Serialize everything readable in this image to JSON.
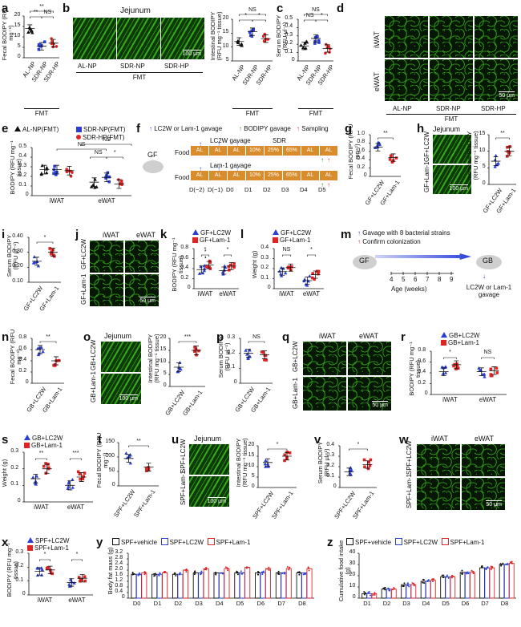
{
  "colors": {
    "blue": "#2a3fd8",
    "red": "#e02424",
    "black": "#111111",
    "green_img": "#2f9a18",
    "food": "#d98c2b"
  },
  "panels": {
    "a": {
      "label": "a",
      "ylabel": "Fecal BODIPY (RFU mg⁻¹)",
      "yticks": [
        "0",
        "5",
        "10",
        "15",
        "20"
      ],
      "groups": [
        "AL-NP",
        "SDR-NP",
        "SDR-HP"
      ],
      "group_caption": "FMT",
      "sig": [
        "**",
        "**",
        "NS"
      ]
    },
    "b": {
      "label": "b",
      "title": "Jejunum",
      "images": [
        "AL-NP",
        "SDR-NP",
        "SDR-HP"
      ],
      "scale": "100 μm",
      "group_caption": "FMT",
      "ylabel": "Intestinal BODIPY (RFU mg⁻¹ tissue)",
      "yticks": [
        "5",
        "10",
        "15",
        "20"
      ],
      "groups": [
        "AL-NP",
        "SDR-NP",
        "SDR-HP"
      ],
      "sig": [
        "NS",
        "*",
        "*"
      ]
    },
    "c": {
      "label": "c",
      "ylabel": "Serum BODIPY (RFU μl⁻¹)",
      "yticks": [
        "0",
        "0.1",
        "0.2",
        "0.3",
        "0.4",
        "0.5"
      ],
      "groups": [
        "AL-NP",
        "SDR-NP",
        "SDR-HP"
      ],
      "group_caption": "FMT",
      "sig": [
        "NS",
        "NS",
        "*"
      ]
    },
    "d": {
      "label": "d",
      "rows": [
        "iWAT",
        "eWAT"
      ],
      "cols": [
        "AL-NP",
        "SDR-NP",
        "SDR-HP"
      ],
      "group_caption": "FMT",
      "scale": "50 μm"
    },
    "e": {
      "label": "e",
      "legend": [
        "AL-NP(FMT)",
        "SDR-NP(FMT)",
        "SDR-HP(FMT)"
      ],
      "ylabel": "BODIPY (RFU mg⁻¹ tissue)",
      "yticks": [
        "0",
        "0.1",
        "0.2",
        "0.3",
        "0.4",
        "0.5"
      ],
      "groups": [
        "iWAT",
        "eWAT"
      ],
      "sig": [
        "NS",
        "NS",
        "NS",
        "*",
        "**"
      ]
    },
    "f": {
      "label": "f",
      "legend": [
        "LC2W or Lam-1 gavage",
        "BODIPY gavage",
        "Sampling"
      ],
      "mouse": "GF",
      "food": "Food",
      "lc2w_title": "LC2W gavage",
      "lam_title": "Lam-1 gavage",
      "sdr": "SDR",
      "boxes": [
        "AL",
        "AL",
        "AL",
        "10%",
        "25%",
        "65%",
        "AL",
        "AL"
      ],
      "days": [
        "D(−2)",
        "D(−1)",
        "D0",
        "D1",
        "D2",
        "D3",
        "D4",
        "D5"
      ]
    },
    "g": {
      "label": "g",
      "ylabel": "Fecal BODIPY (RFU mg⁻¹)",
      "yticks": [
        "0",
        "0.2",
        "0.4",
        "0.6",
        "0.8",
        "1.0"
      ],
      "groups": [
        "GF+LC2W",
        "GF+Lam-1"
      ],
      "sig": [
        "**"
      ]
    },
    "h": {
      "label": "h",
      "title": "Jejunum",
      "rows": [
        "GF+LC2W",
        "GF+Lam-1"
      ],
      "scale": "100 μm",
      "ylabel": "Intestinal BODIPY (RFU mg⁻¹ tissue)",
      "yticks": [
        "0",
        "5",
        "10",
        "15"
      ],
      "groups": [
        "GF+LC2W",
        "GF+Lam-1"
      ],
      "sig": [
        "**"
      ]
    },
    "i": {
      "label": "i",
      "ylabel": "Serum BODIPY (RFU μl⁻¹)",
      "yticks": [
        "0.10",
        "0.20",
        "0.30",
        "0.40"
      ],
      "groups": [
        "GF+LC2W",
        "GF+Lam-1"
      ],
      "sig": [
        "*"
      ]
    },
    "j": {
      "label": "j",
      "cols": [
        "iWAT",
        "eWAT"
      ],
      "rows": [
        "GF+LC2W",
        "GF+Lam-1"
      ],
      "scale": "50 μm"
    },
    "k": {
      "label": "k",
      "legend": [
        "GF+LC2W",
        "GF+Lam-1"
      ],
      "ylabel": "BODIPY (RFU mg⁻¹ tissue)",
      "yticks": [
        "0",
        "0.2",
        "0.4",
        "0.6",
        "0.8"
      ],
      "groups": [
        "iWAT",
        "eWAT"
      ],
      "sig": [
        "*",
        "*"
      ]
    },
    "l": {
      "label": "l",
      "legend": [
        "GF+LC2W",
        "GF+Lam-1"
      ],
      "ylabel": "Weight (g)",
      "yticks": [
        "0",
        "0.1",
        "0.2",
        "0.3",
        "0.4"
      ],
      "groups": [
        "iWAT",
        "eWAT"
      ],
      "sig": [
        "NS",
        "*"
      ]
    },
    "m": {
      "label": "m",
      "legend": [
        "Gavage with 8 bacterial strains",
        "Confirm colonization"
      ],
      "mouse_a": "GF",
      "mouse_b": "GB",
      "ages": [
        "4",
        "5",
        "6",
        "7",
        "8",
        "9"
      ],
      "age_caption": "Age (weeks)",
      "arrow_caption": "LC2W or Lam-1 gavage"
    },
    "n": {
      "label": "n",
      "ylabel": "Fecal BODIPY (RFU mg⁻¹)",
      "yticks": [
        "0",
        "0.2",
        "0.4",
        "0.6",
        "0.8"
      ],
      "groups": [
        "GB+LC2W",
        "GB+Lam-1"
      ],
      "sig": [
        "**"
      ]
    },
    "o": {
      "label": "o",
      "title": "Jejunum",
      "rows": [
        "GB+LC2W",
        "GB+Lam-1"
      ],
      "scale": "100 μm",
      "ylabel": "Intestinal BODIPY (RFU mg⁻¹ tissue)",
      "yticks": [
        "0",
        "5",
        "10",
        "15",
        "20"
      ],
      "groups": [
        "GB+LC2W",
        "GB+Lam-1"
      ],
      "sig": [
        "***"
      ]
    },
    "p": {
      "label": "p",
      "ylabel": "Serum BODIPY (RFU μl⁻¹)",
      "yticks": [
        "0",
        "0.1",
        "0.2",
        "0.3"
      ],
      "groups": [
        "GB+LC2W",
        "GB+Lam-1"
      ],
      "sig": [
        "NS"
      ]
    },
    "q": {
      "label": "q",
      "cols": [
        "iWAT",
        "eWAT"
      ],
      "rows": [
        "GB+LC2W",
        "GB+Lam-1"
      ],
      "scale": "50 μm"
    },
    "r": {
      "label": "r",
      "legend": [
        "GB+LC2W",
        "GB+Lam-1"
      ],
      "ylabel": "BODIPY (RFU mg⁻¹ tissue)",
      "yticks": [
        "0",
        "0.2",
        "0.4",
        "0.6",
        "0.8"
      ],
      "groups": [
        "iWAT",
        "eWAT"
      ],
      "sig": [
        "*",
        "NS"
      ]
    },
    "s": {
      "label": "s",
      "legend": [
        "GB+LC2W",
        "GB+Lam-1"
      ],
      "ylabel": "Weight (g)",
      "yticks": [
        "0",
        "0.1",
        "0.2",
        "0.3"
      ],
      "groups": [
        "iWAT",
        "eWAT"
      ],
      "sig": [
        "**",
        "***"
      ]
    },
    "t": {
      "label": "t",
      "ylabel": "Fecal BODIPY (RFU mg⁻¹)",
      "yticks": [
        "0",
        "50",
        "100",
        "150"
      ],
      "groups": [
        "SPF+LC2W",
        "SPF+Lam-1"
      ],
      "sig": [
        "**"
      ]
    },
    "u": {
      "label": "u",
      "title": "Jejunum",
      "rows": [
        "SPF+LC2W",
        "SPF+Lam-1"
      ],
      "scale": "100 μm",
      "ylabel": "Intestinal BODIPY (RFU mg⁻¹ tissue)",
      "yticks": [
        "0",
        "5",
        "10",
        "15",
        "20"
      ],
      "groups": [
        "SPF+LC2W",
        "SPF+Lam-1"
      ],
      "sig": [
        "*"
      ]
    },
    "v": {
      "label": "v",
      "ylabel": "Serum BODIPY (RFU μl⁻¹)",
      "yticks": [
        "0",
        "0.1",
        "0.2",
        "0.3",
        "0.4"
      ],
      "groups": [
        "SPF+LC2W",
        "SPF+Lam-1"
      ],
      "sig": [
        "*"
      ]
    },
    "w": {
      "label": "w",
      "cols": [
        "iWAT",
        "eWAT"
      ],
      "rows": [
        "SPF+LC2W",
        "SPF+Lam-1"
      ],
      "scale": "50 μm"
    },
    "x": {
      "label": "x",
      "legend": [
        "SPF+LC2W",
        "SPF+Lam-1"
      ],
      "ylabel": "BODIPY (RFU mg⁻¹ tissue)",
      "yticks": [
        "0",
        "0.1",
        "0.2",
        "0.3"
      ],
      "groups": [
        "iWAT",
        "eWAT"
      ],
      "sig": [
        "*",
        "*"
      ]
    },
    "y": {
      "label": "y",
      "legend": [
        "SPF+vehicle",
        "SPF+LC2W",
        "SPF+Lam-1"
      ],
      "ylabel": "Body fat mass (g)",
      "yticks": [
        "0",
        "0.4",
        "0.8",
        "1.2",
        "1.6",
        "2.0",
        "2.4",
        "2.8",
        "3.2"
      ],
      "days": [
        "D0",
        "D1",
        "D2",
        "D3",
        "D4",
        "D5",
        "D6",
        "D7",
        "D8"
      ]
    },
    "z": {
      "label": "z",
      "legend": [
        "SPF+vehicle",
        "SPF+LC2W",
        "SPF+Lam-1"
      ],
      "ylabel": "Cumulative food intake (g)",
      "yticks": [
        "0",
        "10",
        "20",
        "30",
        "40"
      ],
      "days": [
        "D1",
        "D2",
        "D3",
        "D4",
        "D5",
        "D6",
        "D7",
        "D8"
      ]
    }
  },
  "chart_data": [
    {
      "type": "scatter",
      "panel": "a",
      "categories": [
        "AL-NP",
        "SDR-NP",
        "SDR-HP"
      ],
      "means": [
        14,
        5.5,
        7
      ],
      "ylim": [
        0,
        20
      ]
    },
    {
      "type": "scatter",
      "panel": "b",
      "categories": [
        "AL-NP",
        "SDR-NP",
        "SDR-HP"
      ],
      "means": [
        12,
        15.5,
        13
      ],
      "ylim": [
        5,
        20
      ]
    },
    {
      "type": "scatter",
      "panel": "c",
      "categories": [
        "AL-NP",
        "SDR-NP",
        "SDR-HP"
      ],
      "means": [
        0.18,
        0.27,
        0.15
      ],
      "ylim": [
        0,
        0.5
      ]
    },
    {
      "type": "scatter",
      "panel": "e",
      "categories": [
        "iWAT",
        "eWAT"
      ],
      "series": [
        {
          "name": "AL-NP(FMT)",
          "values": [
            0.27,
            0.14
          ]
        },
        {
          "name": "SDR-NP(FMT)",
          "values": [
            0.27,
            0.19
          ]
        },
        {
          "name": "SDR-HP(FMT)",
          "values": [
            0.26,
            0.12
          ]
        }
      ],
      "ylim": [
        0,
        0.5
      ]
    },
    {
      "type": "scatter",
      "panel": "g",
      "categories": [
        "GF+LC2W",
        "GF+Lam-1"
      ],
      "means": [
        0.7,
        0.45
      ],
      "ylim": [
        0,
        1.0
      ]
    },
    {
      "type": "scatter",
      "panel": "h",
      "categories": [
        "GF+LC2W",
        "GF+Lam-1"
      ],
      "means": [
        7,
        10
      ],
      "ylim": [
        0,
        15
      ]
    },
    {
      "type": "scatter",
      "panel": "i",
      "categories": [
        "GF+LC2W",
        "GF+Lam-1"
      ],
      "means": [
        0.24,
        0.3
      ],
      "ylim": [
        0.1,
        0.4
      ]
    },
    {
      "type": "scatter",
      "panel": "k",
      "categories": [
        "iWAT",
        "eWAT"
      ],
      "series": [
        {
          "name": "GF+LC2W",
          "values": [
            0.38,
            0.36
          ]
        },
        {
          "name": "GF+Lam-1",
          "values": [
            0.47,
            0.45
          ]
        }
      ],
      "ylim": [
        0,
        0.8
      ]
    },
    {
      "type": "scatter",
      "panel": "l",
      "categories": [
        "iWAT",
        "eWAT"
      ],
      "series": [
        {
          "name": "GF+LC2W",
          "values": [
            0.17,
            0.08
          ]
        },
        {
          "name": "GF+Lam-1",
          "values": [
            0.21,
            0.14
          ]
        }
      ],
      "ylim": [
        0,
        0.4
      ]
    },
    {
      "type": "scatter",
      "panel": "n",
      "categories": [
        "GB+LC2W",
        "GB+Lam-1"
      ],
      "means": [
        0.6,
        0.4
      ],
      "ylim": [
        0,
        0.8
      ]
    },
    {
      "type": "scatter",
      "panel": "o",
      "categories": [
        "GB+LC2W",
        "GB+Lam-1"
      ],
      "means": [
        8,
        15
      ],
      "ylim": [
        0,
        20
      ]
    },
    {
      "type": "scatter",
      "panel": "p",
      "categories": [
        "GB+LC2W",
        "GB+Lam-1"
      ],
      "means": [
        0.2,
        0.19
      ],
      "ylim": [
        0,
        0.3
      ]
    },
    {
      "type": "scatter",
      "panel": "r",
      "categories": [
        "iWAT",
        "eWAT"
      ],
      "series": [
        {
          "name": "GB+LC2W",
          "values": [
            0.42,
            0.42
          ]
        },
        {
          "name": "GB+Lam-1",
          "values": [
            0.55,
            0.44
          ]
        }
      ],
      "ylim": [
        0,
        0.8
      ]
    },
    {
      "type": "scatter",
      "panel": "s",
      "categories": [
        "iWAT",
        "eWAT"
      ],
      "series": [
        {
          "name": "GB+LC2W",
          "values": [
            0.14,
            0.1
          ]
        },
        {
          "name": "GB+Lam-1",
          "values": [
            0.2,
            0.15
          ]
        }
      ],
      "ylim": [
        0,
        0.3
      ]
    },
    {
      "type": "scatter",
      "panel": "t",
      "categories": [
        "SPF+LC2W",
        "SPF+Lam-1"
      ],
      "means": [
        95,
        65
      ],
      "ylim": [
        0,
        150
      ]
    },
    {
      "type": "scatter",
      "panel": "u",
      "categories": [
        "SPF+LC2W",
        "SPF+Lam-1"
      ],
      "means": [
        12,
        15
      ],
      "ylim": [
        0,
        20
      ]
    },
    {
      "type": "scatter",
      "panel": "v",
      "categories": [
        "SPF+LC2W",
        "SPF+Lam-1"
      ],
      "means": [
        0.15,
        0.22
      ],
      "ylim": [
        0,
        0.4
      ]
    },
    {
      "type": "scatter",
      "panel": "x",
      "categories": [
        "iWAT",
        "eWAT"
      ],
      "series": [
        {
          "name": "SPF+LC2W",
          "values": [
            0.17,
            0.09
          ]
        },
        {
          "name": "SPF+Lam-1",
          "values": [
            0.18,
            0.12
          ]
        }
      ],
      "ylim": [
        0,
        0.3
      ]
    },
    {
      "type": "bar",
      "panel": "y",
      "categories": [
        "D0",
        "D1",
        "D2",
        "D3",
        "D4",
        "D5",
        "D6",
        "D7",
        "D8"
      ],
      "series": [
        {
          "name": "SPF+vehicle",
          "values": [
            1.7,
            1.7,
            1.7,
            1.8,
            1.8,
            1.8,
            1.8,
            1.8,
            1.8
          ]
        },
        {
          "name": "SPF+LC2W",
          "values": [
            1.7,
            1.7,
            1.7,
            1.8,
            1.8,
            1.8,
            1.8,
            1.8,
            1.8
          ]
        },
        {
          "name": "SPF+Lam-1",
          "values": [
            1.8,
            1.8,
            2.0,
            2.1,
            2.1,
            2.2,
            2.1,
            2.1,
            2.1
          ]
        }
      ],
      "ylim": [
        0,
        3.2
      ]
    },
    {
      "type": "bar",
      "panel": "z",
      "categories": [
        "D1",
        "D2",
        "D3",
        "D4",
        "D5",
        "D6",
        "D7",
        "D8"
      ],
      "series": [
        {
          "name": "SPF+vehicle",
          "values": [
            4,
            8,
            12,
            15,
            19,
            23,
            27,
            30
          ]
        },
        {
          "name": "SPF+LC2W",
          "values": [
            4,
            8,
            12,
            15,
            19,
            23,
            27,
            30
          ]
        },
        {
          "name": "SPF+Lam-1",
          "values": [
            4,
            8,
            12,
            16,
            19,
            23,
            27,
            31
          ]
        }
      ],
      "ylim": [
        0,
        40
      ]
    }
  ]
}
